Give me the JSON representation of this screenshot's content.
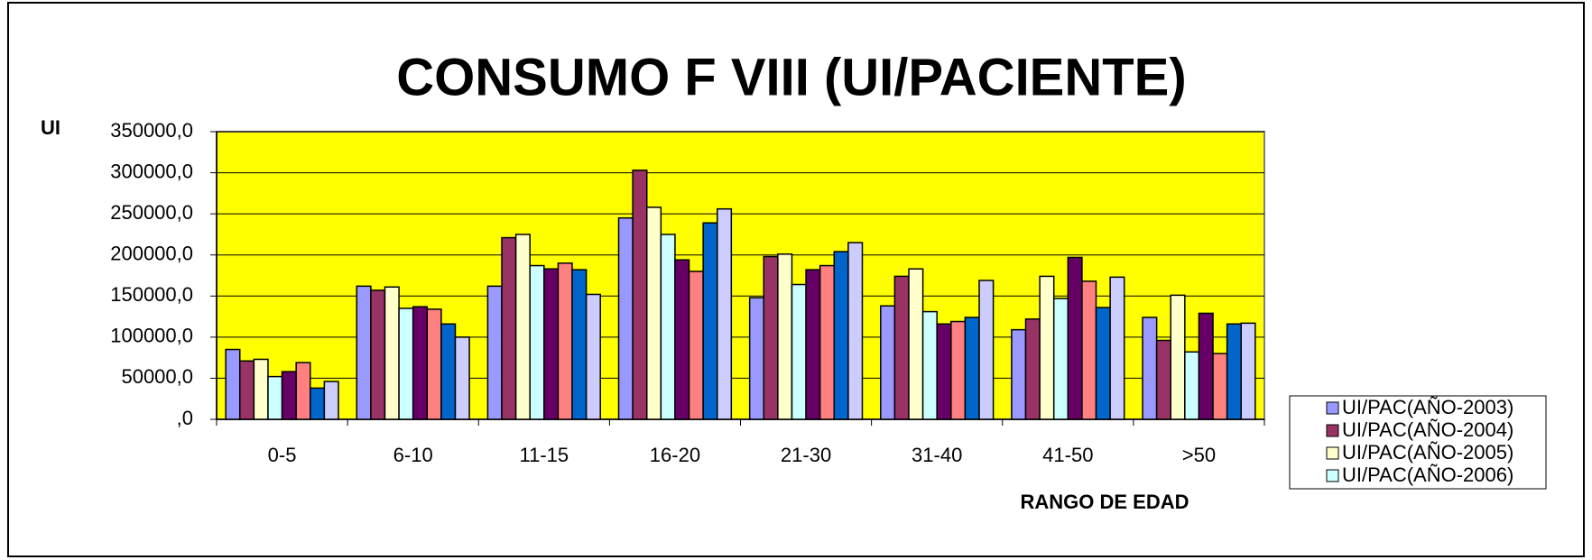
{
  "chart_data": {
    "type": "bar",
    "title": "CONSUMO F VIII (UI/PACIENTE)",
    "y_label": "UI",
    "x_label": "RANGO DE EDAD",
    "categories": [
      "0-5",
      "6-10",
      "11-15",
      "16-20",
      "21-30",
      "31-40",
      "41-50",
      ">50"
    ],
    "series": [
      {
        "name": "UI/PAC(AÑO-2003)",
        "color": "#9999ff",
        "values": [
          85000,
          162000,
          162000,
          245000,
          148000,
          138000,
          109000,
          124000
        ]
      },
      {
        "name": "UI/PAC(AÑO-2004)",
        "color": "#993366",
        "values": [
          71000,
          157000,
          221000,
          303000,
          198000,
          174000,
          122000,
          96000
        ]
      },
      {
        "name": "UI/PAC(AÑO-2005)",
        "color": "#ffffcc",
        "values": [
          73000,
          161000,
          225000,
          258000,
          201000,
          183000,
          174000,
          151000
        ]
      },
      {
        "name": "UI/PAC(AÑO-2006)",
        "color": "#ccffff",
        "values": [
          52000,
          135000,
          187000,
          225000,
          164000,
          131000,
          147000,
          82000
        ]
      },
      {
        "color": "#660066",
        "values": [
          58000,
          137000,
          183000,
          194000,
          182000,
          116000,
          197000,
          129000
        ]
      },
      {
        "color": "#ff8080",
        "values": [
          69000,
          134000,
          190000,
          180000,
          187000,
          119000,
          168000,
          80000
        ]
      },
      {
        "color": "#0066cc",
        "values": [
          38000,
          116000,
          182000,
          239000,
          204000,
          124000,
          136000,
          116000
        ]
      },
      {
        "color": "#ccccff",
        "values": [
          46000,
          100000,
          152000,
          256000,
          215000,
          169000,
          173000,
          117000
        ]
      }
    ],
    "ylim": [
      0,
      350000
    ],
    "yticks": [
      {
        "value": 0,
        "label": ",0"
      },
      {
        "value": 50000,
        "label": "50000,0"
      },
      {
        "value": 100000,
        "label": "100000,0"
      },
      {
        "value": 150000,
        "label": "150000,0"
      },
      {
        "value": 200000,
        "label": "200000,0"
      },
      {
        "value": 250000,
        "label": "250000,0"
      },
      {
        "value": 300000,
        "label": "300000,0"
      },
      {
        "value": 350000,
        "label": "350000,0"
      }
    ],
    "grid": true,
    "plot_background": "#ffff00",
    "legend": "bottom-right"
  }
}
